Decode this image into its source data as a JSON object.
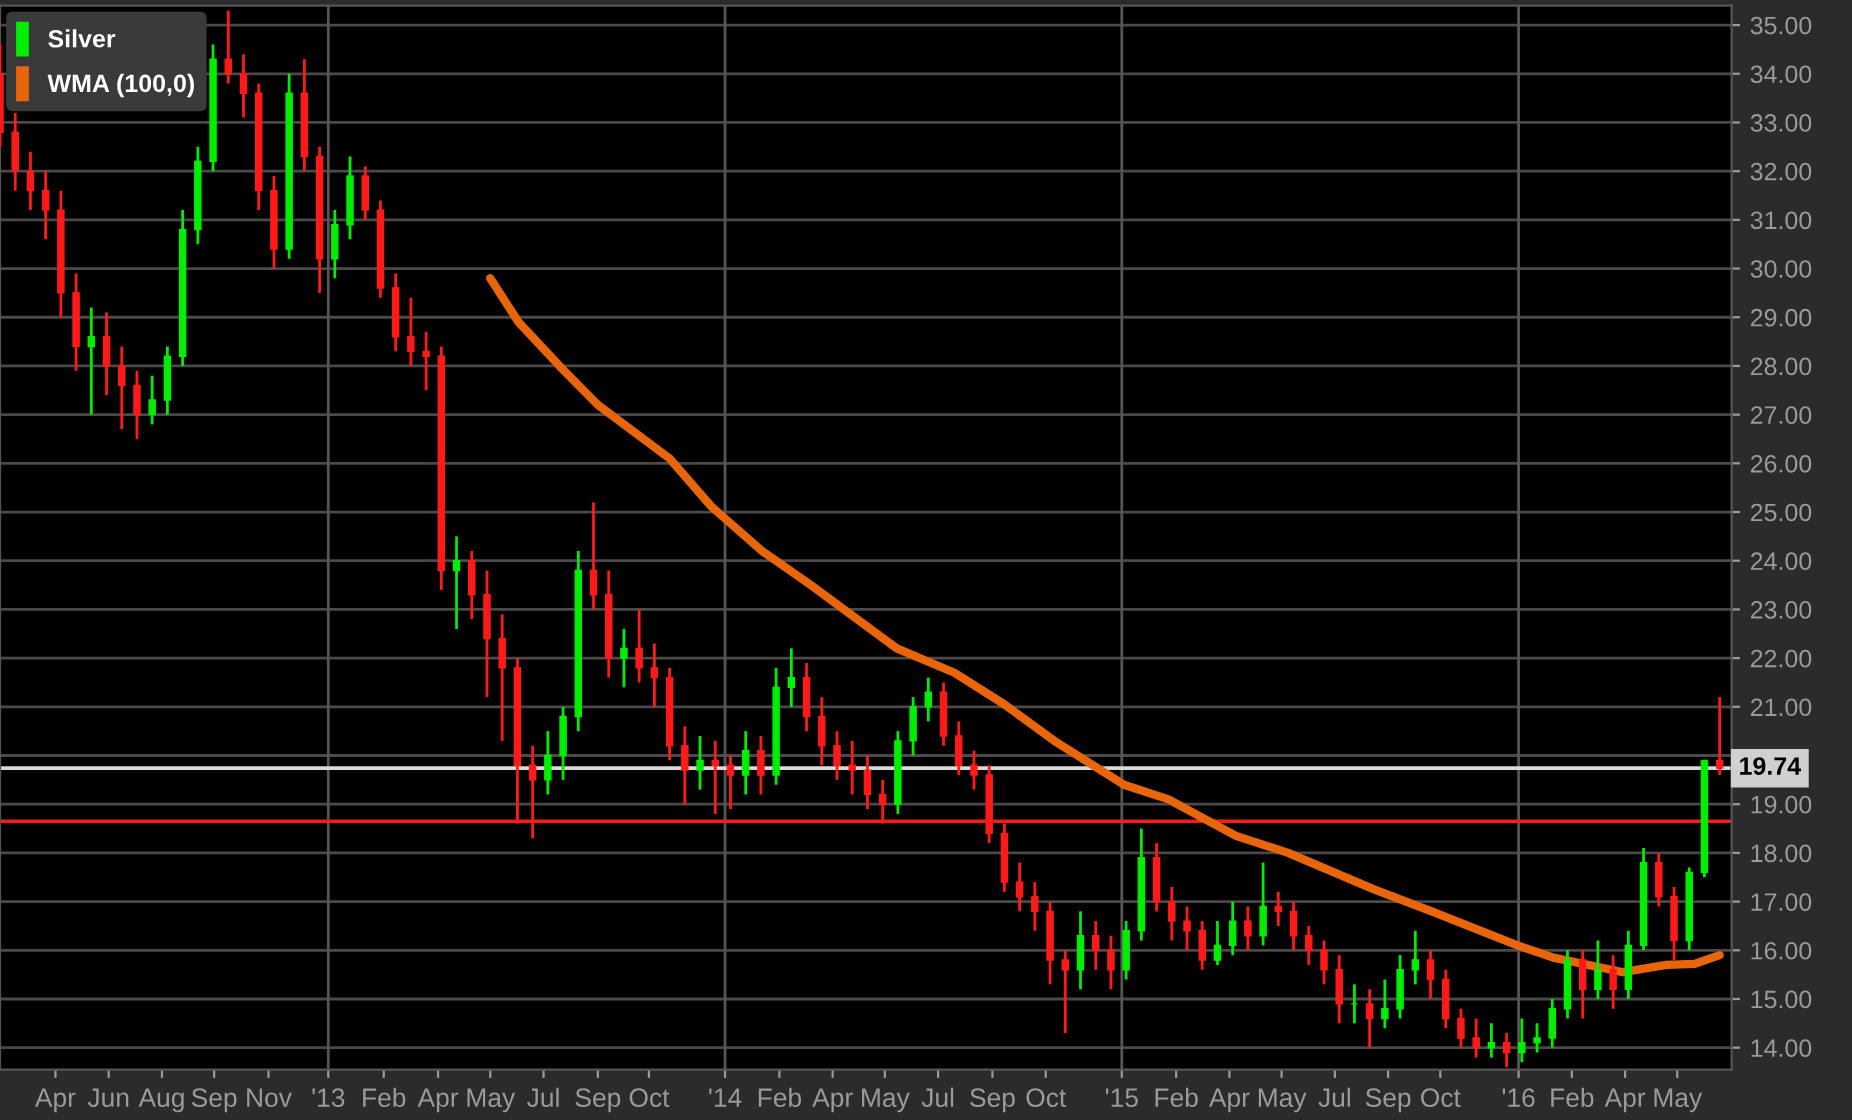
{
  "chart_data": {
    "type": "candlestick",
    "x": [
      "2012-03-05",
      "2012-03-19",
      "2012-04-02",
      "2012-04-16",
      "2012-04-30",
      "2012-05-14",
      "2012-05-28",
      "2012-06-11",
      "2012-06-25",
      "2012-07-09",
      "2012-07-23",
      "2012-08-06",
      "2012-08-20",
      "2012-09-03",
      "2012-09-17",
      "2012-10-01",
      "2012-10-15",
      "2012-10-29",
      "2012-11-12",
      "2012-11-26",
      "2012-12-10",
      "2012-12-24",
      "2013-01-07",
      "2013-01-21",
      "2013-02-04",
      "2013-02-18",
      "2013-03-04",
      "2013-03-18",
      "2013-04-01",
      "2013-04-15",
      "2013-04-29",
      "2013-05-13",
      "2013-05-27",
      "2013-06-10",
      "2013-06-24",
      "2013-07-08",
      "2013-07-22",
      "2013-08-05",
      "2013-08-19",
      "2013-09-02",
      "2013-09-16",
      "2013-09-30",
      "2013-10-14",
      "2013-10-28",
      "2013-11-11",
      "2013-11-25",
      "2013-12-09",
      "2013-12-23",
      "2014-01-06",
      "2014-01-20",
      "2014-02-03",
      "2014-02-17",
      "2014-03-03",
      "2014-03-17",
      "2014-03-31",
      "2014-04-14",
      "2014-04-28",
      "2014-05-12",
      "2014-05-26",
      "2014-06-09",
      "2014-06-23",
      "2014-07-07",
      "2014-07-21",
      "2014-08-04",
      "2014-08-18",
      "2014-09-01",
      "2014-09-15",
      "2014-09-29",
      "2014-10-13",
      "2014-10-27",
      "2014-11-10",
      "2014-11-24",
      "2014-12-08",
      "2014-12-22",
      "2015-01-05",
      "2015-01-19",
      "2015-02-02",
      "2015-02-16",
      "2015-03-02",
      "2015-03-16",
      "2015-03-30",
      "2015-04-13",
      "2015-04-27",
      "2015-05-11",
      "2015-05-25",
      "2015-06-08",
      "2015-06-22",
      "2015-07-06",
      "2015-07-20",
      "2015-08-03",
      "2015-08-17",
      "2015-08-31",
      "2015-09-14",
      "2015-09-28",
      "2015-10-12",
      "2015-10-26",
      "2015-11-09",
      "2015-11-23",
      "2015-12-07",
      "2015-12-21",
      "2016-01-04",
      "2016-01-18",
      "2016-02-01",
      "2016-02-15",
      "2016-02-29",
      "2016-03-14",
      "2016-03-28",
      "2016-04-11",
      "2016-04-25",
      "2016-05-09",
      "2016-05-23",
      "2016-06-06",
      "2016-06-20",
      "2016-07-04"
    ],
    "series": [
      {
        "name": "Silver",
        "colors": [
          "#ff1a1a",
          "#ff1a1a",
          "#ff1a1a",
          "#ff1a1a",
          "#ff1a1a",
          "#ff1a1a",
          "#00ee00",
          "#ff1a1a",
          "#ff1a1a",
          "#ff1a1a",
          "#00ee00",
          "#00ee00",
          "#00ee00",
          "#00ee00",
          "#00ee00",
          "#ff1a1a",
          "#ff1a1a",
          "#ff1a1a",
          "#ff1a1a",
          "#00ee00",
          "#ff1a1a",
          "#ff1a1a",
          "#00ee00",
          "#00ee00",
          "#ff1a1a",
          "#ff1a1a",
          "#ff1a1a",
          "#ff1a1a",
          "#ff1a1a",
          "#ff1a1a",
          "#00ee00",
          "#ff1a1a",
          "#ff1a1a",
          "#ff1a1a",
          "#ff1a1a",
          "#ff1a1a",
          "#00ee00",
          "#00ee00",
          "#00ee00",
          "#ff1a1a",
          "#ff1a1a",
          "#00ee00",
          "#ff1a1a",
          "#ff1a1a",
          "#ff1a1a",
          "#ff1a1a",
          "#00ee00",
          "#ff1a1a",
          "#ff1a1a",
          "#00ee00",
          "#ff1a1a",
          "#00ee00",
          "#00ee00",
          "#ff1a1a",
          "#ff1a1a",
          "#ff1a1a",
          "#ff1a1a",
          "#ff1a1a",
          "#ff1a1a",
          "#00ee00",
          "#00ee00",
          "#00ee00",
          "#ff1a1a",
          "#ff1a1a",
          "#ff1a1a",
          "#ff1a1a",
          "#ff1a1a",
          "#ff1a1a",
          "#ff1a1a",
          "#ff1a1a",
          "#ff1a1a",
          "#00ee00",
          "#ff1a1a",
          "#ff1a1a",
          "#00ee00",
          "#00ee00",
          "#ff1a1a",
          "#ff1a1a",
          "#ff1a1a",
          "#ff1a1a",
          "#00ee00",
          "#00ee00",
          "#ff1a1a",
          "#00ee00",
          "#ff1a1a",
          "#ff1a1a",
          "#ff1a1a",
          "#ff1a1a",
          "#ff1a1a",
          "#00ee00",
          "#ff1a1a",
          "#00ee00",
          "#00ee00",
          "#00ee00",
          "#ff1a1a",
          "#ff1a1a",
          "#ff1a1a",
          "#ff1a1a",
          "#00ee00",
          "#ff1a1a",
          "#00ee00",
          "#00ee00",
          "#00ee00",
          "#00ee00",
          "#ff1a1a",
          "#00ee00",
          "#ff1a1a",
          "#00ee00",
          "#00ee00",
          "#ff1a1a",
          "#ff1a1a",
          "#00ee00",
          "#00ee00",
          "#ff1a1a"
        ],
        "ohlc": [
          [
            34.0,
            34.6,
            32.5,
            32.8
          ],
          [
            32.8,
            33.2,
            31.6,
            32.0
          ],
          [
            32.0,
            32.4,
            31.2,
            31.6
          ],
          [
            31.6,
            32.0,
            30.6,
            31.2
          ],
          [
            31.2,
            31.6,
            29.0,
            29.5
          ],
          [
            29.5,
            29.9,
            27.9,
            28.4
          ],
          [
            28.4,
            29.2,
            27.0,
            28.6
          ],
          [
            28.6,
            29.1,
            27.4,
            28.0
          ],
          [
            28.0,
            28.4,
            26.7,
            27.6
          ],
          [
            27.6,
            27.9,
            26.5,
            27.0
          ],
          [
            27.0,
            27.8,
            26.8,
            27.3
          ],
          [
            27.3,
            28.4,
            27.0,
            28.2
          ],
          [
            28.2,
            31.2,
            28.0,
            30.8
          ],
          [
            30.8,
            32.5,
            30.5,
            32.2
          ],
          [
            32.2,
            34.6,
            32.0,
            34.3
          ],
          [
            34.3,
            35.3,
            33.8,
            34.0
          ],
          [
            34.0,
            34.4,
            33.1,
            33.6
          ],
          [
            33.6,
            33.8,
            31.2,
            31.6
          ],
          [
            31.6,
            31.9,
            30.0,
            30.4
          ],
          [
            30.4,
            34.0,
            30.2,
            33.6
          ],
          [
            33.6,
            34.3,
            32.0,
            32.3
          ],
          [
            32.3,
            32.5,
            29.5,
            30.2
          ],
          [
            30.2,
            31.2,
            29.8,
            30.9
          ],
          [
            30.9,
            32.3,
            30.6,
            31.9
          ],
          [
            31.9,
            32.1,
            31.0,
            31.2
          ],
          [
            31.2,
            31.4,
            29.4,
            29.6
          ],
          [
            29.6,
            29.9,
            28.3,
            28.6
          ],
          [
            28.6,
            29.4,
            28.0,
            28.3
          ],
          [
            28.3,
            28.7,
            27.5,
            28.2
          ],
          [
            28.2,
            28.4,
            23.4,
            23.8
          ],
          [
            23.8,
            24.5,
            22.6,
            24.0
          ],
          [
            24.0,
            24.2,
            22.8,
            23.3
          ],
          [
            23.3,
            23.8,
            21.2,
            22.4
          ],
          [
            22.4,
            22.9,
            20.3,
            21.8
          ],
          [
            21.8,
            22.0,
            18.6,
            19.8
          ],
          [
            19.8,
            20.2,
            18.3,
            19.5
          ],
          [
            19.5,
            20.5,
            19.2,
            20.0
          ],
          [
            20.0,
            21.0,
            19.5,
            20.8
          ],
          [
            20.8,
            24.2,
            20.5,
            23.8
          ],
          [
            23.8,
            25.2,
            23.0,
            23.3
          ],
          [
            23.3,
            23.8,
            21.6,
            22.0
          ],
          [
            22.0,
            22.6,
            21.4,
            22.2
          ],
          [
            22.2,
            23.0,
            21.5,
            21.8
          ],
          [
            21.8,
            22.3,
            21.0,
            21.6
          ],
          [
            21.6,
            21.8,
            19.9,
            20.2
          ],
          [
            20.2,
            20.6,
            19.0,
            19.7
          ],
          [
            19.7,
            20.4,
            19.3,
            19.9
          ],
          [
            19.9,
            20.3,
            18.8,
            19.8
          ],
          [
            19.8,
            20.0,
            18.9,
            19.6
          ],
          [
            19.6,
            20.5,
            19.2,
            20.1
          ],
          [
            20.1,
            20.4,
            19.2,
            19.6
          ],
          [
            19.6,
            21.8,
            19.4,
            21.4
          ],
          [
            21.4,
            22.2,
            21.0,
            21.6
          ],
          [
            21.6,
            21.9,
            20.5,
            20.8
          ],
          [
            20.8,
            21.2,
            19.8,
            20.2
          ],
          [
            20.2,
            20.5,
            19.5,
            19.8
          ],
          [
            19.8,
            20.3,
            19.2,
            19.7
          ],
          [
            19.7,
            20.0,
            18.9,
            19.2
          ],
          [
            19.2,
            19.5,
            18.6,
            19.0
          ],
          [
            19.0,
            20.5,
            18.8,
            20.3
          ],
          [
            20.3,
            21.2,
            20.0,
            21.0
          ],
          [
            21.0,
            21.6,
            20.7,
            21.3
          ],
          [
            21.3,
            21.5,
            20.2,
            20.4
          ],
          [
            20.4,
            20.7,
            19.6,
            19.8
          ],
          [
            19.8,
            20.1,
            19.3,
            19.6
          ],
          [
            19.6,
            19.8,
            18.2,
            18.4
          ],
          [
            18.4,
            18.6,
            17.2,
            17.4
          ],
          [
            17.4,
            17.8,
            16.8,
            17.1
          ],
          [
            17.1,
            17.4,
            16.4,
            16.8
          ],
          [
            16.8,
            17.0,
            15.3,
            15.8
          ],
          [
            15.8,
            16.0,
            14.3,
            15.6
          ],
          [
            15.6,
            16.8,
            15.2,
            16.3
          ],
          [
            16.3,
            16.6,
            15.6,
            16.0
          ],
          [
            16.0,
            16.3,
            15.2,
            15.6
          ],
          [
            15.6,
            16.6,
            15.4,
            16.4
          ],
          [
            16.4,
            18.5,
            16.2,
            17.9
          ],
          [
            17.9,
            18.2,
            16.8,
            17.0
          ],
          [
            17.0,
            17.3,
            16.2,
            16.6
          ],
          [
            16.6,
            16.9,
            16.0,
            16.4
          ],
          [
            16.4,
            16.6,
            15.6,
            15.8
          ],
          [
            15.8,
            16.6,
            15.7,
            16.1
          ],
          [
            16.1,
            17.0,
            15.9,
            16.6
          ],
          [
            16.6,
            16.9,
            16.0,
            16.3
          ],
          [
            16.3,
            17.8,
            16.1,
            16.9
          ],
          [
            16.9,
            17.2,
            16.5,
            16.8
          ],
          [
            16.8,
            17.0,
            16.0,
            16.3
          ],
          [
            16.3,
            16.5,
            15.7,
            16.0
          ],
          [
            16.0,
            16.2,
            15.3,
            15.6
          ],
          [
            15.6,
            15.9,
            14.5,
            14.9
          ],
          [
            14.9,
            15.3,
            14.5,
            14.9
          ],
          [
            14.9,
            15.2,
            14.0,
            14.6
          ],
          [
            14.6,
            15.4,
            14.4,
            14.8
          ],
          [
            14.8,
            15.9,
            14.6,
            15.6
          ],
          [
            15.6,
            16.4,
            15.3,
            15.8
          ],
          [
            15.8,
            16.0,
            15.0,
            15.4
          ],
          [
            15.4,
            15.6,
            14.4,
            14.6
          ],
          [
            14.6,
            14.8,
            14.0,
            14.2
          ],
          [
            14.2,
            14.6,
            13.8,
            14.0
          ],
          [
            14.0,
            14.5,
            13.8,
            14.1
          ],
          [
            14.1,
            14.3,
            13.6,
            13.9
          ],
          [
            13.9,
            14.6,
            13.7,
            14.1
          ],
          [
            14.1,
            14.5,
            13.9,
            14.2
          ],
          [
            14.2,
            15.0,
            14.0,
            14.8
          ],
          [
            14.8,
            16.0,
            14.6,
            15.8
          ],
          [
            15.8,
            16.0,
            14.6,
            15.2
          ],
          [
            15.2,
            16.2,
            15.0,
            15.6
          ],
          [
            15.6,
            15.9,
            14.8,
            15.2
          ],
          [
            15.2,
            16.4,
            15.0,
            16.1
          ],
          [
            16.1,
            18.1,
            16.0,
            17.8
          ],
          [
            17.8,
            18.0,
            16.9,
            17.1
          ],
          [
            17.1,
            17.3,
            15.8,
            16.2
          ],
          [
            16.2,
            17.7,
            16.0,
            17.6
          ],
          [
            17.6,
            19.9,
            17.5,
            19.9
          ],
          [
            19.9,
            21.2,
            19.6,
            19.74
          ]
        ]
      },
      {
        "name": "WMA (100,0)",
        "type": "line",
        "color": "#e8650a",
        "x": [
          "2013-05-30",
          "2013-06-25",
          "2013-08-06",
          "2013-09-06",
          "2013-11-11",
          "2013-12-20",
          "2014-02-04",
          "2014-03-21",
          "2014-06-08",
          "2014-07-31",
          "2014-09-15",
          "2014-10-31",
          "2015-01-03",
          "2015-02-13",
          "2015-04-16",
          "2015-06-03",
          "2015-08-21",
          "2015-10-13",
          "2015-12-31",
          "2016-02-02",
          "2016-04-06",
          "2016-05-16",
          "2016-06-11",
          "2016-07-04"
        ],
        "values": [
          29.8,
          28.9,
          27.9,
          27.2,
          26.1,
          25.1,
          24.2,
          23.5,
          22.2,
          21.7,
          21.05,
          20.3,
          19.4,
          19.1,
          18.35,
          18.0,
          17.25,
          16.8,
          16.1,
          15.85,
          15.55,
          15.7,
          15.72,
          15.9
        ]
      }
    ],
    "xlim": [
      "2012-03-05",
      "2016-07-15"
    ],
    "xticks": [
      {
        "value": "2012-04-25",
        "label": "Apr"
      },
      {
        "value": "2012-06-13",
        "label": "Jun"
      },
      {
        "value": "2012-08-01",
        "label": "Aug"
      },
      {
        "value": "2012-09-18",
        "label": "Sep"
      },
      {
        "value": "2012-11-07",
        "label": "Nov"
      },
      {
        "value": "2013-01-01",
        "label": "'13"
      },
      {
        "value": "2013-02-21",
        "label": "Feb"
      },
      {
        "value": "2013-04-12",
        "label": "Apr"
      },
      {
        "value": "2013-05-30",
        "label": "May"
      },
      {
        "value": "2013-07-18",
        "label": "Jul"
      },
      {
        "value": "2013-09-06",
        "label": "Sep"
      },
      {
        "value": "2013-10-23",
        "label": "Oct"
      },
      {
        "value": "2014-01-01",
        "label": "'14"
      },
      {
        "value": "2014-02-20",
        "label": "Feb"
      },
      {
        "value": "2014-04-10",
        "label": "Apr"
      },
      {
        "value": "2014-05-28",
        "label": "May"
      },
      {
        "value": "2014-07-16",
        "label": "Jul"
      },
      {
        "value": "2014-09-04",
        "label": "Sep"
      },
      {
        "value": "2014-10-23",
        "label": "Oct"
      },
      {
        "value": "2015-01-01",
        "label": "'15"
      },
      {
        "value": "2015-02-20",
        "label": "Feb"
      },
      {
        "value": "2015-04-10",
        "label": "Apr"
      },
      {
        "value": "2015-05-28",
        "label": "May"
      },
      {
        "value": "2015-07-16",
        "label": "Jul"
      },
      {
        "value": "2015-09-03",
        "label": "Sep"
      },
      {
        "value": "2015-10-21",
        "label": "Oct"
      },
      {
        "value": "2016-01-01",
        "label": "'16"
      },
      {
        "value": "2016-02-19",
        "label": "Feb"
      },
      {
        "value": "2016-04-08",
        "label": "Apr"
      },
      {
        "value": "2016-05-26",
        "label": "May"
      }
    ],
    "ylim": [
      13.55,
      35.4
    ],
    "yticks": [
      {
        "value": 14,
        "label": "14.00"
      },
      {
        "value": 15,
        "label": "15.00"
      },
      {
        "value": 16,
        "label": "16.00"
      },
      {
        "value": 17,
        "label": "17.00"
      },
      {
        "value": 18,
        "label": "18.00"
      },
      {
        "value": 19,
        "label": "19.00"
      },
      {
        "value": 20,
        "label": null
      },
      {
        "value": 21,
        "label": "21.00"
      },
      {
        "value": 22,
        "label": "22.00"
      },
      {
        "value": 23,
        "label": "23.00"
      },
      {
        "value": 24,
        "label": "24.00"
      },
      {
        "value": 25,
        "label": "25.00"
      },
      {
        "value": 26,
        "label": "26.00"
      },
      {
        "value": 27,
        "label": "27.00"
      },
      {
        "value": 28,
        "label": "28.00"
      },
      {
        "value": 29,
        "label": "29.00"
      },
      {
        "value": 30,
        "label": "30.00"
      },
      {
        "value": 31,
        "label": "31.00"
      },
      {
        "value": 32,
        "label": "32.00"
      },
      {
        "value": 33,
        "label": "33.00"
      },
      {
        "value": 34,
        "label": "34.00"
      },
      {
        "value": 35,
        "label": "35.00"
      }
    ],
    "ref_lines": [
      {
        "axis": "y",
        "value": 18.65,
        "color": "#ff1a1a"
      },
      {
        "axis": "y",
        "value": 19.74,
        "label": "19.74",
        "color": "#d8d8d8"
      },
      {
        "axis": "x",
        "value": "2013-01-01",
        "color": "#555555"
      },
      {
        "axis": "x",
        "value": "2014-01-01",
        "color": "#555555"
      },
      {
        "axis": "x",
        "value": "2015-01-01",
        "color": "#555555"
      },
      {
        "axis": "x",
        "value": "2016-01-01",
        "color": "#555555"
      }
    ],
    "grid": "y",
    "legend": "top left",
    "line_style": "solid",
    "marker": "none"
  }
}
